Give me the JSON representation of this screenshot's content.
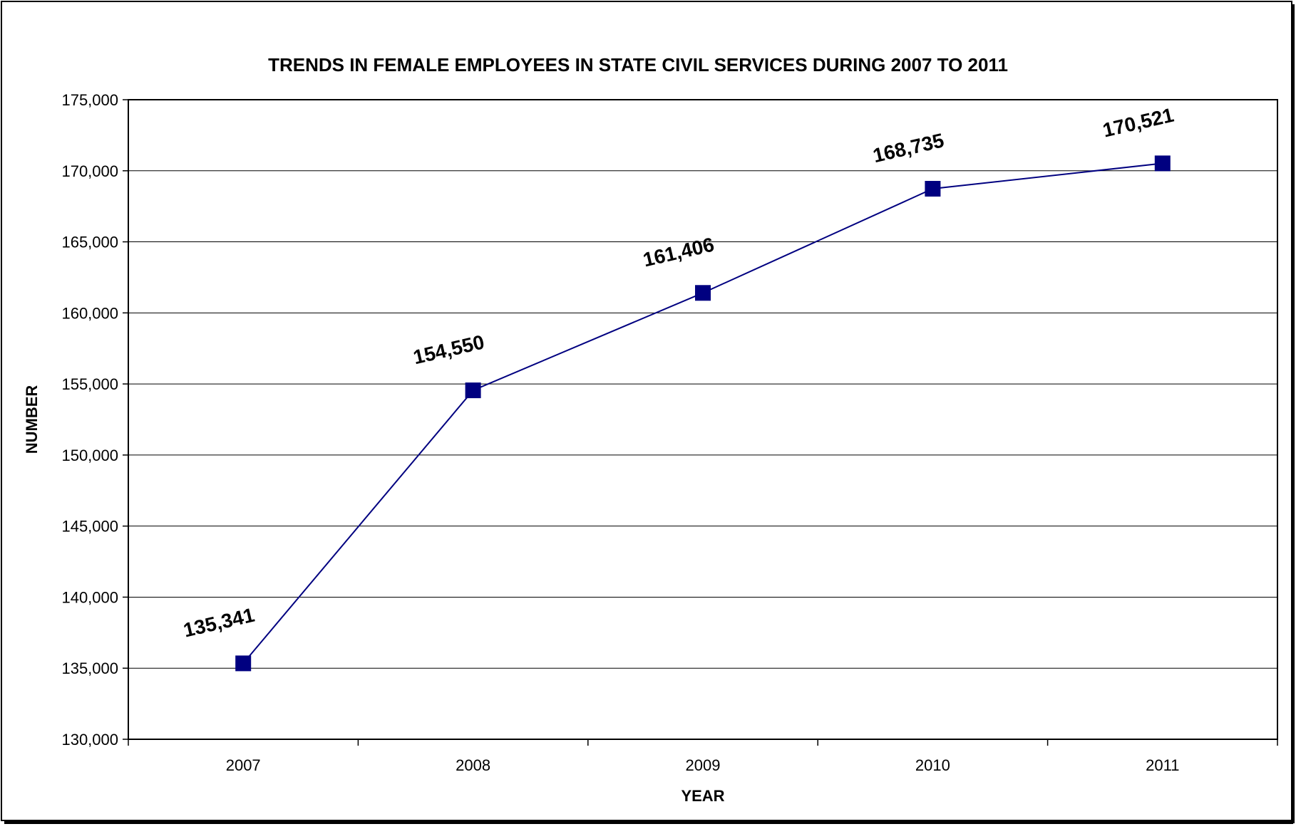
{
  "chart_data": {
    "type": "line",
    "title": "TRENDS IN FEMALE EMPLOYEES IN STATE CIVIL SERVICES DURING 2007 TO 2011",
    "xlabel": "YEAR",
    "ylabel": "NUMBER",
    "categories": [
      "2007",
      "2008",
      "2009",
      "2010",
      "2011"
    ],
    "values": [
      135341,
      154550,
      161406,
      168735,
      170521
    ],
    "data_labels": [
      "135,341",
      "154,550",
      "161,406",
      "168,735",
      "170,521"
    ],
    "ylim": [
      130000,
      175000
    ],
    "y_ticks": [
      130000,
      135000,
      140000,
      145000,
      150000,
      155000,
      160000,
      165000,
      170000,
      175000
    ],
    "y_tick_labels": [
      "130,000",
      "135,000",
      "140,000",
      "145,000",
      "150,000",
      "155,000",
      "160,000",
      "165,000",
      "170,000",
      "175,000"
    ],
    "grid": true,
    "legend": "none",
    "colors": {
      "series": "#000080",
      "grid": "#000000"
    }
  }
}
